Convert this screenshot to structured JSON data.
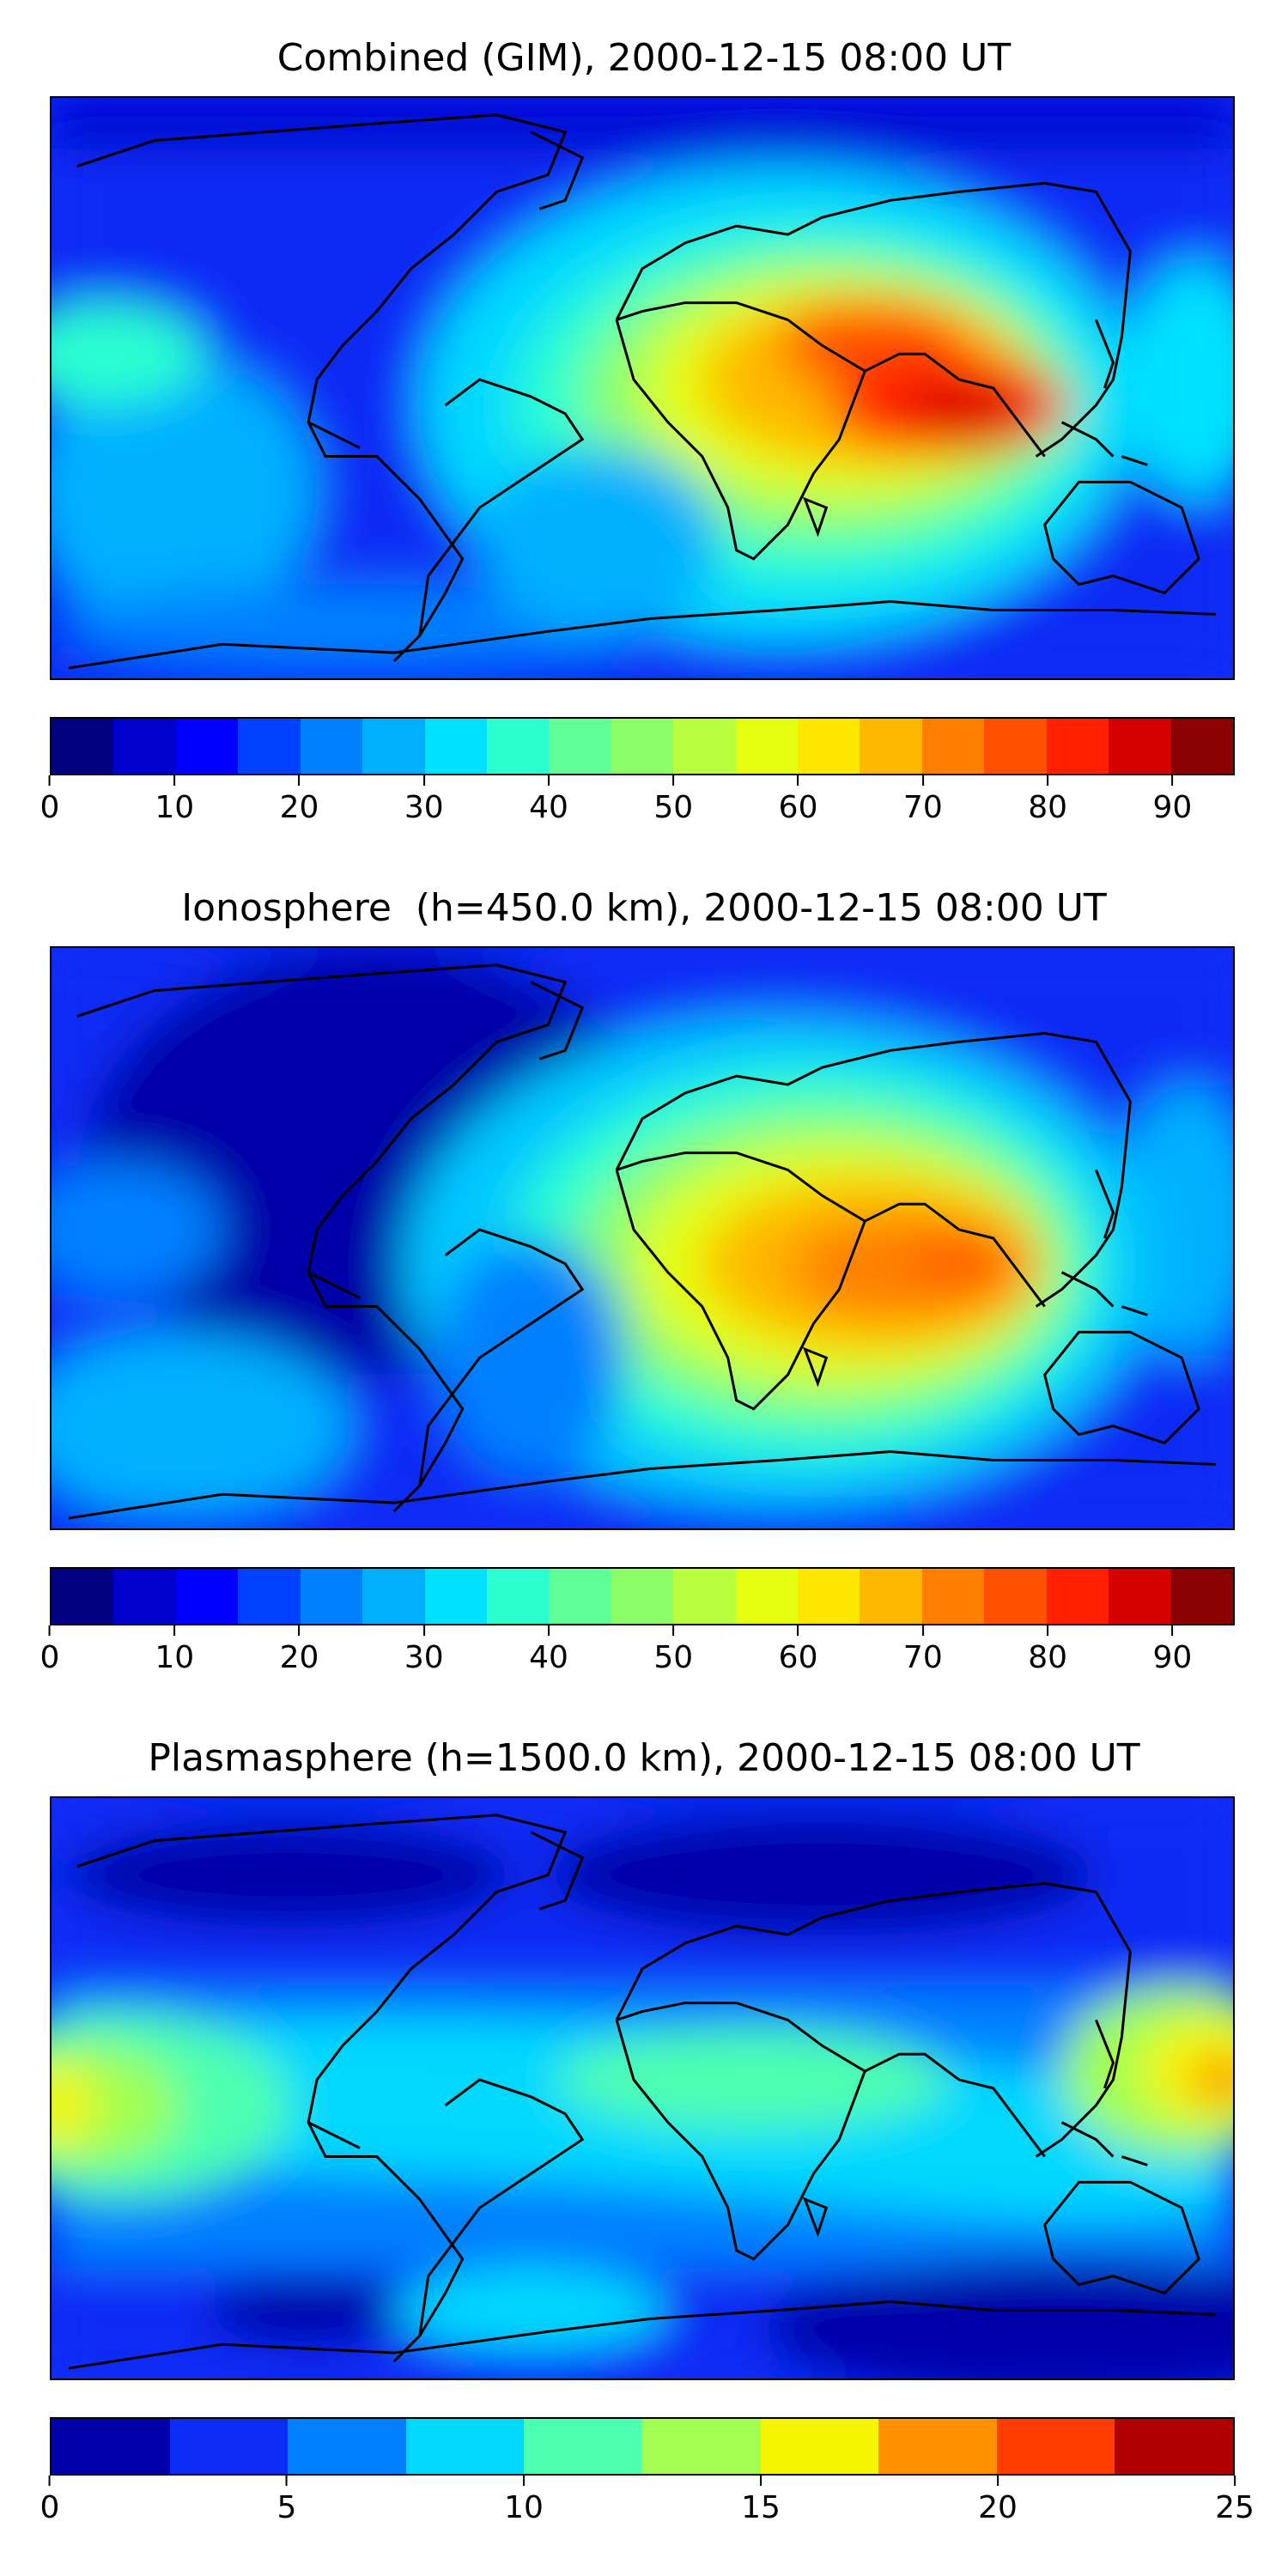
{
  "panels": [
    {
      "title": "Combined (GIM), 2000-12-15 08:00 UT",
      "colorbar": {
        "colors": [
          "#000080",
          "#0000cd",
          "#0000ff",
          "#0040ff",
          "#0080ff",
          "#00b0ff",
          "#00e0ff",
          "#2bffd0",
          "#60ff98",
          "#8cff68",
          "#b8ff40",
          "#e4ff10",
          "#ffe600",
          "#ffb800",
          "#ff8000",
          "#ff5000",
          "#ff2000",
          "#d40000",
          "#8b0000"
        ],
        "ticks": [
          0,
          10,
          20,
          30,
          40,
          50,
          60,
          70,
          80,
          90
        ],
        "vmin": 0,
        "vmax": 95
      }
    },
    {
      "title": "Ionosphere  (h=450.0 km), 2000-12-15 08:00 UT",
      "colorbar": {
        "colors": [
          "#000080",
          "#0000cd",
          "#0000ff",
          "#0040ff",
          "#0080ff",
          "#00b0ff",
          "#00e0ff",
          "#2bffd0",
          "#60ff98",
          "#8cff68",
          "#b8ff40",
          "#e4ff10",
          "#ffe600",
          "#ffb800",
          "#ff8000",
          "#ff5000",
          "#ff2000",
          "#d40000",
          "#8b0000"
        ],
        "ticks": [
          0,
          10,
          20,
          30,
          40,
          50,
          60,
          70,
          80,
          90
        ],
        "vmin": 0,
        "vmax": 95
      }
    },
    {
      "title": "Plasmasphere (h=1500.0 km), 2000-12-15 08:00 UT",
      "colorbar": {
        "colors": [
          "#0000a8",
          "#0a2cf5",
          "#0080ff",
          "#00d8ff",
          "#4dffb0",
          "#a0ff50",
          "#f5f500",
          "#ff9000",
          "#ff3c00",
          "#b00000"
        ],
        "ticks": [
          0,
          5,
          10,
          15,
          20,
          25
        ],
        "vmin": 0,
        "vmax": 25
      }
    }
  ]
}
